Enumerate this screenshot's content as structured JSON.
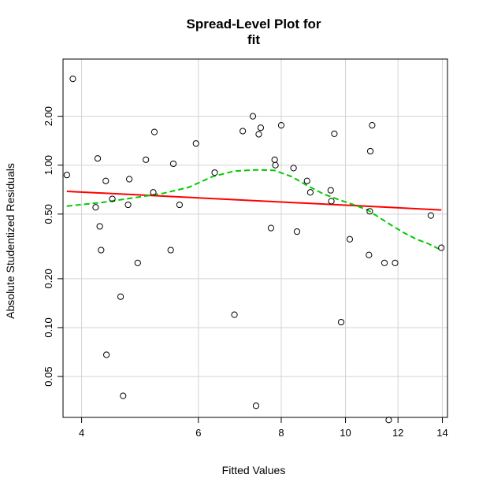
{
  "chart_data": {
    "type": "scatter",
    "title_line1": "Spread-Level Plot for",
    "title_line2": "fit",
    "xlabel": "Fitted Values",
    "ylabel": "Absolute Studentized Residuals",
    "x_scale": "log",
    "y_scale": "log",
    "xlim": [
      3.75,
      14.25
    ],
    "ylim": [
      0.028,
      4.5
    ],
    "x_ticks": [
      4,
      6,
      8,
      10,
      12,
      14
    ],
    "y_ticks": [
      0.05,
      0.1,
      0.2,
      0.5,
      1.0,
      2.0
    ],
    "x_tick_labels": [
      "4",
      "6",
      "8",
      "10",
      "12",
      "14"
    ],
    "y_tick_labels": [
      "0.05",
      "0.10",
      "0.20",
      "0.50",
      "1.00",
      "2.00"
    ],
    "grid": true,
    "colors": {
      "fit_line": "#ff0000",
      "smooth_line": "#00cc00",
      "points": "#000000",
      "grid": "#d3d3d3"
    },
    "points": [
      {
        "x": 3.8,
        "y": 0.87
      },
      {
        "x": 3.88,
        "y": 3.4
      },
      {
        "x": 4.2,
        "y": 0.55
      },
      {
        "x": 4.23,
        "y": 1.1
      },
      {
        "x": 4.26,
        "y": 0.42
      },
      {
        "x": 4.28,
        "y": 0.3
      },
      {
        "x": 4.35,
        "y": 0.8
      },
      {
        "x": 4.36,
        "y": 0.068
      },
      {
        "x": 4.45,
        "y": 0.62
      },
      {
        "x": 4.58,
        "y": 0.155
      },
      {
        "x": 4.62,
        "y": 0.038
      },
      {
        "x": 4.7,
        "y": 0.57
      },
      {
        "x": 4.72,
        "y": 0.82
      },
      {
        "x": 4.86,
        "y": 0.25
      },
      {
        "x": 5.0,
        "y": 1.08
      },
      {
        "x": 5.13,
        "y": 0.68
      },
      {
        "x": 5.15,
        "y": 1.6
      },
      {
        "x": 5.45,
        "y": 0.3
      },
      {
        "x": 5.5,
        "y": 1.02
      },
      {
        "x": 5.62,
        "y": 0.57
      },
      {
        "x": 5.95,
        "y": 1.36
      },
      {
        "x": 6.35,
        "y": 0.9
      },
      {
        "x": 6.8,
        "y": 0.12
      },
      {
        "x": 7.0,
        "y": 1.62
      },
      {
        "x": 7.25,
        "y": 2.0
      },
      {
        "x": 7.33,
        "y": 0.033
      },
      {
        "x": 7.4,
        "y": 1.55
      },
      {
        "x": 7.45,
        "y": 1.7
      },
      {
        "x": 7.72,
        "y": 0.41
      },
      {
        "x": 7.82,
        "y": 1.08
      },
      {
        "x": 7.84,
        "y": 1.0
      },
      {
        "x": 8.0,
        "y": 1.76
      },
      {
        "x": 8.35,
        "y": 0.96
      },
      {
        "x": 8.45,
        "y": 0.39
      },
      {
        "x": 8.75,
        "y": 0.8
      },
      {
        "x": 8.85,
        "y": 0.68
      },
      {
        "x": 9.5,
        "y": 0.7
      },
      {
        "x": 9.52,
        "y": 0.6
      },
      {
        "x": 9.62,
        "y": 1.56
      },
      {
        "x": 9.85,
        "y": 0.108
      },
      {
        "x": 10.15,
        "y": 0.35
      },
      {
        "x": 10.85,
        "y": 0.28
      },
      {
        "x": 10.88,
        "y": 0.52
      },
      {
        "x": 10.9,
        "y": 1.22
      },
      {
        "x": 10.97,
        "y": 1.76
      },
      {
        "x": 11.45,
        "y": 0.25
      },
      {
        "x": 11.62,
        "y": 0.027
      },
      {
        "x": 11.88,
        "y": 0.25
      },
      {
        "x": 13.45,
        "y": 0.49
      },
      {
        "x": 13.95,
        "y": 0.31
      }
    ],
    "fit_line": {
      "x": [
        3.8,
        13.95
      ],
      "y": [
        0.69,
        0.53
      ]
    },
    "smooth_line": {
      "x": [
        3.8,
        4.3,
        4.8,
        5.3,
        5.8,
        6.3,
        6.8,
        7.3,
        7.8,
        8.3,
        8.8,
        9.3,
        9.8,
        10.3,
        10.8,
        11.3,
        11.8,
        12.3,
        12.8,
        13.3,
        13.95
      ],
      "y": [
        0.56,
        0.59,
        0.63,
        0.67,
        0.73,
        0.85,
        0.92,
        0.935,
        0.93,
        0.85,
        0.74,
        0.66,
        0.61,
        0.57,
        0.53,
        0.47,
        0.42,
        0.38,
        0.35,
        0.33,
        0.3
      ]
    }
  }
}
